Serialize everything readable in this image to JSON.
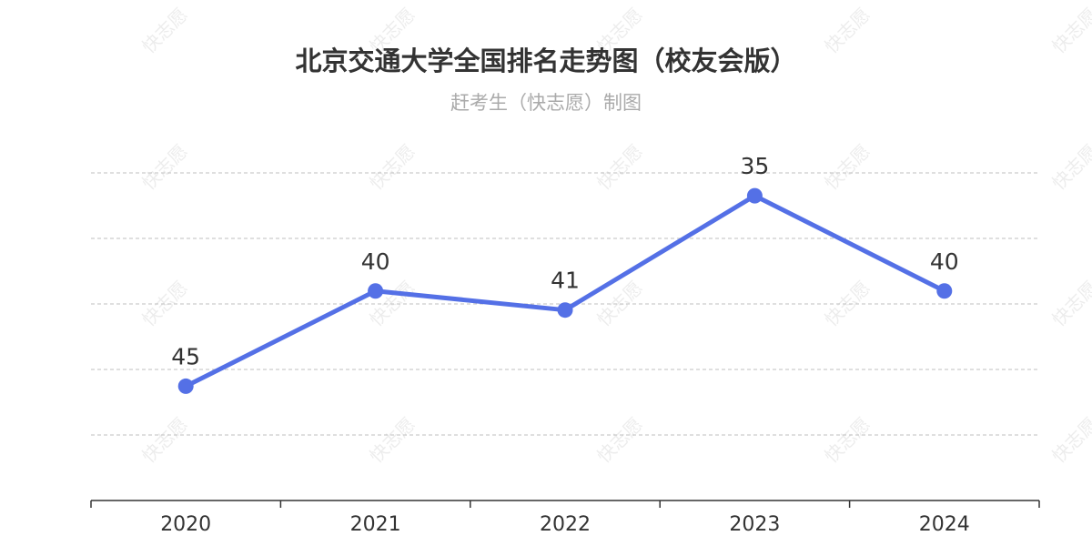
{
  "watermark": "快志愿",
  "chart_data": {
    "type": "line",
    "title": "北京交通大学全国排名走势图（校友会版）",
    "subtitle": "赶考生（快志愿）制图",
    "categories": [
      "2020",
      "2021",
      "2022",
      "2023",
      "2024"
    ],
    "values": [
      45,
      40,
      41,
      35,
      40
    ],
    "y_axis_inverted": true,
    "ylim": [
      33.8,
      51
    ],
    "grid": "horizontal-dashed",
    "line_color": "#5470e6"
  }
}
